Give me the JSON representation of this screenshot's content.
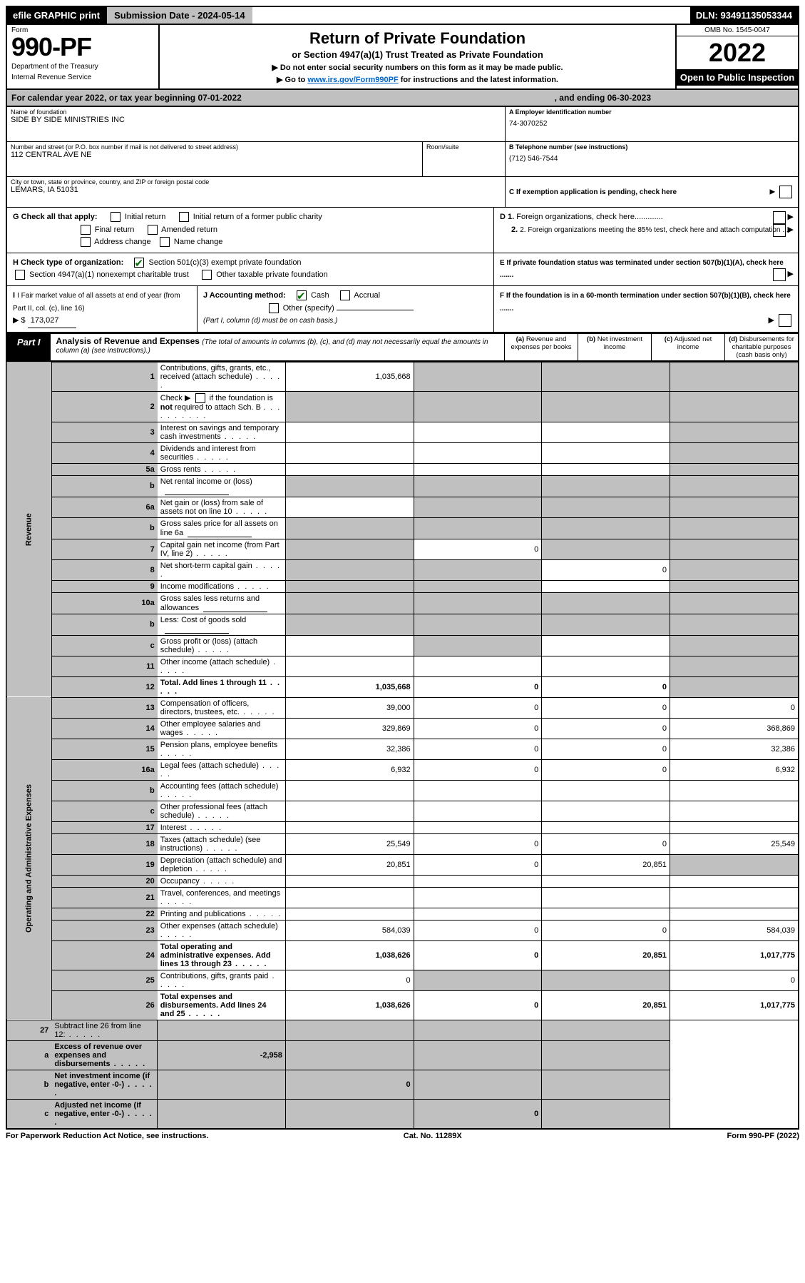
{
  "top_bar": {
    "efile_prefix": "efile",
    "efile_rest": " GRAPHIC print",
    "submission": "Submission Date - 2024-05-14",
    "dln": "DLN: 93491135053344"
  },
  "header": {
    "form_label": "Form",
    "form_no": "990-PF",
    "dept1": "Department of the Treasury",
    "dept2": "Internal Revenue Service",
    "title": "Return of Private Foundation",
    "subtitle": "or Section 4947(a)(1) Trust Treated as Private Foundation",
    "note1_pre": "▶ Do not enter social security numbers on this form as it may be made public.",
    "note2_pre": "▶ Go to ",
    "note2_link": "www.irs.gov/Form990PF",
    "note2_post": " for instructions and the latest information.",
    "omb": "OMB No. 1545-0047",
    "year": "2022",
    "open": "Open to Public Inspection"
  },
  "calendar": {
    "text_a": "For calendar year 2022, or tax year beginning 07-01-2022",
    "text_b": ", and ending 06-30-2023"
  },
  "name_block": {
    "label": "Name of foundation",
    "value": "SIDE BY SIDE MINISTRIES INC",
    "street_label": "Number and street (or P.O. box number if mail is not delivered to street address)",
    "room_label": "Room/suite",
    "street_value": "112 CENTRAL AVE NE",
    "city_label": "City or town, state or province, country, and ZIP or foreign postal code",
    "city_value": "LEMARS, IA  51031"
  },
  "right_block": {
    "a_label": "A Employer identification number",
    "a_value": "74-3070252",
    "b_label": "B Telephone number (see instructions)",
    "b_value": "(712) 546-7544",
    "c_label": "C If exemption application is pending, check here",
    "d1_label": "D 1. Foreign organizations, check here.............",
    "d2_label": "2. Foreign organizations meeting the 85% test, check here and attach computation ...",
    "e_label": "E  If private foundation status was terminated under section 507(b)(1)(A), check here .......",
    "f_label": "F  If the foundation is in a 60-month termination under section 507(b)(1)(B), check here ......."
  },
  "g_row": {
    "g_label": "G Check all that apply:",
    "initial": "Initial return",
    "initial_former": "Initial return of a former public charity",
    "final": "Final return",
    "amended": "Amended return",
    "address": "Address change",
    "name": "Name change"
  },
  "h_row": {
    "h_label": "H Check type of organization:",
    "opt1": "Section 501(c)(3) exempt private foundation",
    "opt2": "Section 4947(a)(1) nonexempt charitable trust",
    "opt3": "Other taxable private foundation"
  },
  "ij_row": {
    "i_label": "I Fair market value of all assets at end of year (from Part II, col. (c), line 16)",
    "i_prefix": "▶ $",
    "i_value": "173,027",
    "j_label": "J Accounting method:",
    "cash": "Cash",
    "accrual": "Accrual",
    "other": "Other (specify)",
    "other_note": "(Part I, column (d) must be on cash basis.)"
  },
  "part1": {
    "tab": "Part I",
    "title_bold": "Analysis of Revenue and Expenses ",
    "title_rest": "(The total of amounts in columns (b), (c), and (d) may not necessarily equal the amounts in column (a) (see instructions).)",
    "col_a": "(a)  Revenue and expenses per books",
    "col_b": "(b)  Net investment income",
    "col_c": "(c)  Adjusted net income",
    "col_d": "(d)  Disbursements for charitable purposes (cash basis only)"
  },
  "side_labels": {
    "revenue": "Revenue",
    "expenses": "Operating and Administrative Expenses"
  },
  "rows": [
    {
      "no": "1",
      "desc": "Contributions, gifts, grants, etc., received (attach schedule)",
      "a": "1,035,668",
      "b": "",
      "c": "",
      "d": "",
      "grey": [
        "b",
        "c",
        "d"
      ]
    },
    {
      "no": "2",
      "desc": "Check ▶ ☐ if the foundation is not required to attach Sch. B",
      "a": "",
      "b": "",
      "c": "",
      "d": "",
      "grey": [
        "a",
        "b",
        "c",
        "d"
      ],
      "special": "check2"
    },
    {
      "no": "3",
      "desc": "Interest on savings and temporary cash investments",
      "a": "",
      "b": "",
      "c": "",
      "d": "",
      "grey": [
        "d"
      ]
    },
    {
      "no": "4",
      "desc": "Dividends and interest from securities",
      "a": "",
      "b": "",
      "c": "",
      "d": "",
      "grey": [
        "d"
      ]
    },
    {
      "no": "5a",
      "desc": "Gross rents",
      "a": "",
      "b": "",
      "c": "",
      "d": "",
      "grey": [
        "d"
      ]
    },
    {
      "no": "b",
      "desc": "Net rental income or (loss)",
      "a": "",
      "b": "",
      "c": "",
      "d": "",
      "grey": [
        "a",
        "b",
        "c",
        "d"
      ],
      "sub_input": true
    },
    {
      "no": "6a",
      "desc": "Net gain or (loss) from sale of assets not on line 10",
      "a": "",
      "b": "",
      "c": "",
      "d": "",
      "grey": [
        "b",
        "c",
        "d"
      ]
    },
    {
      "no": "b",
      "desc": "Gross sales price for all assets on line 6a",
      "a": "",
      "b": "",
      "c": "",
      "d": "",
      "grey": [
        "a",
        "b",
        "c",
        "d"
      ],
      "sub_input": true
    },
    {
      "no": "7",
      "desc": "Capital gain net income (from Part IV, line 2)",
      "a": "",
      "b": "0",
      "c": "",
      "d": "",
      "grey": [
        "a",
        "c",
        "d"
      ]
    },
    {
      "no": "8",
      "desc": "Net short-term capital gain",
      "a": "",
      "b": "",
      "c": "0",
      "d": "",
      "grey": [
        "a",
        "b",
        "d"
      ]
    },
    {
      "no": "9",
      "desc": "Income modifications",
      "a": "",
      "b": "",
      "c": "",
      "d": "",
      "grey": [
        "a",
        "b",
        "d"
      ]
    },
    {
      "no": "10a",
      "desc": "Gross sales less returns and allowances",
      "a": "",
      "b": "",
      "c": "",
      "d": "",
      "grey": [
        "a",
        "b",
        "c",
        "d"
      ],
      "sub_input": true
    },
    {
      "no": "b",
      "desc": "Less: Cost of goods sold",
      "a": "",
      "b": "",
      "c": "",
      "d": "",
      "grey": [
        "a",
        "b",
        "c",
        "d"
      ],
      "sub_input": true
    },
    {
      "no": "c",
      "desc": "Gross profit or (loss) (attach schedule)",
      "a": "",
      "b": "",
      "c": "",
      "d": "",
      "grey": [
        "b",
        "d"
      ]
    },
    {
      "no": "11",
      "desc": "Other income (attach schedule)",
      "a": "",
      "b": "",
      "c": "",
      "d": "",
      "grey": [
        "d"
      ]
    },
    {
      "no": "12",
      "desc": "Total. Add lines 1 through 11",
      "a": "1,035,668",
      "b": "0",
      "c": "0",
      "d": "",
      "grey": [
        "d"
      ],
      "bold": true
    }
  ],
  "exp_rows": [
    {
      "no": "13",
      "desc": "Compensation of officers, directors, trustees, etc.",
      "a": "39,000",
      "b": "0",
      "c": "0",
      "d": "0"
    },
    {
      "no": "14",
      "desc": "Other employee salaries and wages",
      "a": "329,869",
      "b": "0",
      "c": "0",
      "d": "368,869"
    },
    {
      "no": "15",
      "desc": "Pension plans, employee benefits",
      "a": "32,386",
      "b": "0",
      "c": "0",
      "d": "32,386"
    },
    {
      "no": "16a",
      "desc": "Legal fees (attach schedule)",
      "a": "6,932",
      "b": "0",
      "c": "0",
      "d": "6,932"
    },
    {
      "no": "b",
      "desc": "Accounting fees (attach schedule)",
      "a": "",
      "b": "",
      "c": "",
      "d": ""
    },
    {
      "no": "c",
      "desc": "Other professional fees (attach schedule)",
      "a": "",
      "b": "",
      "c": "",
      "d": ""
    },
    {
      "no": "17",
      "desc": "Interest",
      "a": "",
      "b": "",
      "c": "",
      "d": ""
    },
    {
      "no": "18",
      "desc": "Taxes (attach schedule) (see instructions)",
      "a": "25,549",
      "b": "0",
      "c": "0",
      "d": "25,549"
    },
    {
      "no": "19",
      "desc": "Depreciation (attach schedule) and depletion",
      "a": "20,851",
      "b": "0",
      "c": "20,851",
      "d": "",
      "grey": [
        "d"
      ]
    },
    {
      "no": "20",
      "desc": "Occupancy",
      "a": "",
      "b": "",
      "c": "",
      "d": ""
    },
    {
      "no": "21",
      "desc": "Travel, conferences, and meetings",
      "a": "",
      "b": "",
      "c": "",
      "d": ""
    },
    {
      "no": "22",
      "desc": "Printing and publications",
      "a": "",
      "b": "",
      "c": "",
      "d": ""
    },
    {
      "no": "23",
      "desc": "Other expenses (attach schedule)",
      "a": "584,039",
      "b": "0",
      "c": "0",
      "d": "584,039"
    },
    {
      "no": "24",
      "desc": "Total operating and administrative expenses. Add lines 13 through 23",
      "a": "1,038,626",
      "b": "0",
      "c": "20,851",
      "d": "1,017,775",
      "bold": true
    },
    {
      "no": "25",
      "desc": "Contributions, gifts, grants paid",
      "a": "0",
      "b": "",
      "c": "",
      "d": "0",
      "grey": [
        "b",
        "c"
      ]
    },
    {
      "no": "26",
      "desc": "Total expenses and disbursements. Add lines 24 and 25",
      "a": "1,038,626",
      "b": "0",
      "c": "20,851",
      "d": "1,017,775",
      "bold": true
    }
  ],
  "net_rows": [
    {
      "no": "27",
      "desc": "Subtract line 26 from line 12:",
      "a": "",
      "b": "",
      "c": "",
      "d": "",
      "grey": [
        "a",
        "b",
        "c",
        "d"
      ]
    },
    {
      "no": "a",
      "desc": "Excess of revenue over expenses and disbursements",
      "a": "-2,958",
      "b": "",
      "c": "",
      "d": "",
      "grey": [
        "b",
        "c",
        "d"
      ],
      "bold": true
    },
    {
      "no": "b",
      "desc": "Net investment income (if negative, enter -0-)",
      "a": "",
      "b": "0",
      "c": "",
      "d": "",
      "grey": [
        "a",
        "c",
        "d"
      ],
      "bold": true
    },
    {
      "no": "c",
      "desc": "Adjusted net income (if negative, enter -0-)",
      "a": "",
      "b": "",
      "c": "0",
      "d": "",
      "grey": [
        "a",
        "b",
        "d"
      ],
      "bold": true
    }
  ],
  "footer": {
    "left": "For Paperwork Reduction Act Notice, see instructions.",
    "mid": "Cat. No. 11289X",
    "right": "Form 990-PF (2022)"
  }
}
